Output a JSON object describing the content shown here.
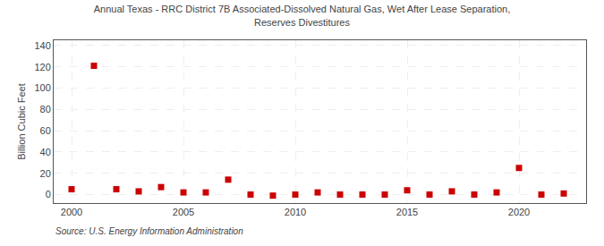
{
  "chart_data": {
    "type": "scatter",
    "title": "Annual Texas - RRC District 7B Associated-Dissolved Natural Gas, Wet After Lease Separation,\nReserves Divestitures",
    "ylabel": "Billion Cubic Feet",
    "annotations": [
      "Source: U.S. Energy Information Administration"
    ],
    "x": [
      2000,
      2001,
      2002,
      2003,
      2004,
      2005,
      2006,
      2007,
      2008,
      2009,
      2010,
      2011,
      2012,
      2013,
      2014,
      2015,
      2016,
      2017,
      2018,
      2019,
      2020,
      2021,
      2022
    ],
    "values": [
      5,
      121,
      5,
      3,
      7,
      2,
      2,
      14,
      0,
      -1,
      0,
      2,
      0,
      0,
      0,
      4,
      0,
      3,
      0,
      2,
      25,
      0,
      1
    ],
    "color": "#cc0000",
    "marker": "square",
    "xlim": [
      1999.2,
      2023.0
    ],
    "xticks": [
      2000,
      2005,
      2010,
      2015,
      2020
    ],
    "ylim": [
      -8,
      145
    ],
    "yticks": [
      0,
      20,
      40,
      60,
      80,
      100,
      120,
      140
    ],
    "grid": true
  }
}
